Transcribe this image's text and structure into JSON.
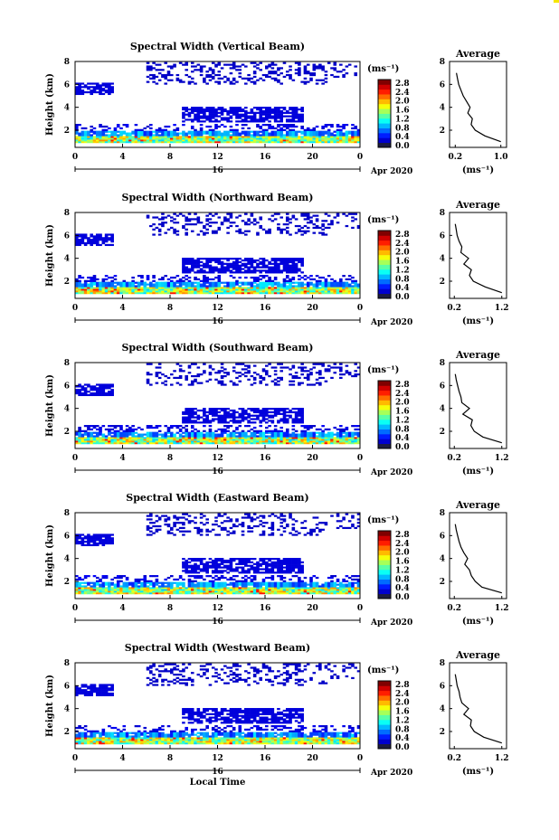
{
  "chart_data": [
    {
      "type": "heatmap",
      "title": "Spectral Width (Vertical Beam)",
      "ylabel": "Height (km)",
      "xlabel": "",
      "x_ticks": [
        "0",
        "4",
        "8",
        "12",
        "16",
        "20",
        "0"
      ],
      "y_ticks": [
        "2",
        "4",
        "6",
        "8"
      ],
      "date_label": "16",
      "month_label": "Apr 2020",
      "xlim": [
        0,
        24
      ],
      "ylim": [
        0.5,
        8
      ],
      "colorbar": {
        "unit": "(ms⁻¹)",
        "ticks": [
          "2.8",
          "2.4",
          "2.0",
          "1.6",
          "1.2",
          "0.8",
          "0.4",
          "0.0"
        ],
        "range": [
          0,
          2.8
        ]
      },
      "profile": {
        "title": "Average",
        "xlabel": "(ms⁻¹)",
        "x_ticks": [
          "0.2",
          "1.0"
        ],
        "y_ticks": [
          "2",
          "4",
          "6",
          "8"
        ],
        "xlim": [
          0.1,
          1.1
        ],
        "heights": [
          1.0,
          1.5,
          2.0,
          2.5,
          3.0,
          3.5,
          4.0,
          4.5,
          5.0,
          5.5,
          6.0,
          6.5,
          7.0
        ],
        "values": [
          1.0,
          0.72,
          0.55,
          0.48,
          0.5,
          0.42,
          0.46,
          0.4,
          0.34,
          0.3,
          0.26,
          0.24,
          0.22
        ]
      }
    },
    {
      "type": "heatmap",
      "title": "Spectral Width (Northward Beam)",
      "ylabel": "Height (km)",
      "xlabel": "",
      "x_ticks": [
        "0",
        "4",
        "8",
        "12",
        "16",
        "20",
        "0"
      ],
      "y_ticks": [
        "2",
        "4",
        "6",
        "8"
      ],
      "date_label": "16",
      "month_label": "Apr 2020",
      "xlim": [
        0,
        24
      ],
      "ylim": [
        0.5,
        8
      ],
      "colorbar": {
        "unit": "(ms⁻¹)",
        "ticks": [
          "2.8",
          "2.4",
          "2.0",
          "1.6",
          "1.2",
          "0.8",
          "0.4",
          "0.0"
        ],
        "range": [
          0,
          2.8
        ]
      },
      "profile": {
        "title": "Average",
        "xlabel": "(ms⁻¹)",
        "x_ticks": [
          "0.2",
          "1.2"
        ],
        "y_ticks": [
          "2",
          "4",
          "6",
          "8"
        ],
        "xlim": [
          0.1,
          1.3
        ],
        "heights": [
          1.0,
          1.5,
          2.0,
          2.5,
          3.0,
          3.5,
          4.0,
          4.5,
          5.0,
          5.5,
          6.0,
          6.5,
          7.0
        ],
        "values": [
          1.2,
          0.85,
          0.6,
          0.52,
          0.56,
          0.4,
          0.5,
          0.34,
          0.36,
          0.3,
          0.26,
          0.24,
          0.22
        ]
      }
    },
    {
      "type": "heatmap",
      "title": "Spectral Width (Southward Beam)",
      "ylabel": "Height (km)",
      "xlabel": "",
      "x_ticks": [
        "0",
        "4",
        "8",
        "12",
        "16",
        "20",
        "0"
      ],
      "y_ticks": [
        "2",
        "4",
        "6",
        "8"
      ],
      "date_label": "16",
      "month_label": "Apr 2020",
      "xlim": [
        0,
        24
      ],
      "ylim": [
        0.5,
        8
      ],
      "colorbar": {
        "unit": "(ms⁻¹)",
        "ticks": [
          "2.8",
          "2.4",
          "2.0",
          "1.6",
          "1.2",
          "0.8",
          "0.4",
          "0.0"
        ],
        "range": [
          0,
          2.8
        ]
      },
      "profile": {
        "title": "Average",
        "xlabel": "(ms⁻¹)",
        "x_ticks": [
          "0.2",
          "1.2"
        ],
        "y_ticks": [
          "2",
          "4",
          "6",
          "8"
        ],
        "xlim": [
          0.1,
          1.3
        ],
        "heights": [
          1.0,
          1.5,
          2.0,
          2.5,
          3.0,
          3.5,
          4.0,
          4.5,
          5.0,
          5.5,
          6.0,
          6.5,
          7.0
        ],
        "values": [
          1.2,
          0.8,
          0.62,
          0.55,
          0.58,
          0.38,
          0.52,
          0.36,
          0.34,
          0.3,
          0.27,
          0.24,
          0.22
        ]
      }
    },
    {
      "type": "heatmap",
      "title": "Spectral Width (Eastward Beam)",
      "ylabel": "Height (km)",
      "xlabel": "",
      "x_ticks": [
        "0",
        "4",
        "8",
        "12",
        "16",
        "20",
        "0"
      ],
      "y_ticks": [
        "2",
        "4",
        "6",
        "8"
      ],
      "date_label": "16",
      "month_label": "Apr 2020",
      "xlim": [
        0,
        24
      ],
      "ylim": [
        0.5,
        8
      ],
      "colorbar": {
        "unit": "(ms⁻¹)",
        "ticks": [
          "2.8",
          "2.4",
          "2.0",
          "1.6",
          "1.2",
          "0.8",
          "0.4",
          "0.0"
        ],
        "range": [
          0,
          2.8
        ]
      },
      "profile": {
        "title": "Average",
        "xlabel": "(ms⁻¹)",
        "x_ticks": [
          "0.2",
          "1.2"
        ],
        "y_ticks": [
          "2",
          "4",
          "6",
          "8"
        ],
        "xlim": [
          0.1,
          1.3
        ],
        "heights": [
          1.0,
          1.5,
          2.0,
          2.5,
          3.0,
          3.5,
          4.0,
          4.5,
          5.0,
          5.5,
          6.0,
          6.5,
          7.0
        ],
        "values": [
          1.2,
          0.78,
          0.64,
          0.56,
          0.52,
          0.42,
          0.48,
          0.4,
          0.34,
          0.3,
          0.27,
          0.24,
          0.22
        ]
      }
    },
    {
      "type": "heatmap",
      "title": "Spectral Width (Westward Beam)",
      "ylabel": "Height (km)",
      "xlabel": "Local Time",
      "x_ticks": [
        "0",
        "4",
        "8",
        "12",
        "16",
        "20",
        "0"
      ],
      "y_ticks": [
        "2",
        "4",
        "6",
        "8"
      ],
      "date_label": "16",
      "month_label": "Apr 2020",
      "xlim": [
        0,
        24
      ],
      "ylim": [
        0.5,
        8
      ],
      "colorbar": {
        "unit": "(ms⁻¹)",
        "ticks": [
          "2.8",
          "2.4",
          "2.0",
          "1.6",
          "1.2",
          "0.8",
          "0.4",
          "0.0"
        ],
        "range": [
          0,
          2.8
        ]
      },
      "profile": {
        "title": "Average",
        "xlabel": "(ms⁻¹)",
        "x_ticks": [
          "0.2",
          "1.2"
        ],
        "y_ticks": [
          "2",
          "4",
          "6",
          "8"
        ],
        "xlim": [
          0.1,
          1.3
        ],
        "heights": [
          1.0,
          1.5,
          2.0,
          2.5,
          3.0,
          3.5,
          4.0,
          4.5,
          5.0,
          5.5,
          6.0,
          6.5,
          7.0
        ],
        "values": [
          1.2,
          0.82,
          0.62,
          0.54,
          0.56,
          0.4,
          0.5,
          0.36,
          0.32,
          0.3,
          0.26,
          0.24,
          0.22
        ]
      }
    }
  ]
}
